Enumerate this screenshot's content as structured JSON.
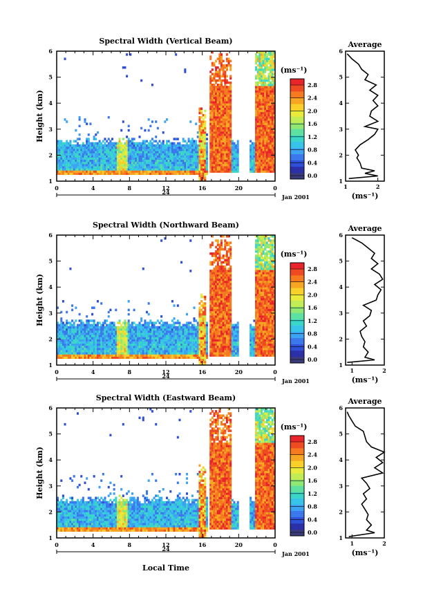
{
  "colorbar": {
    "unit_label": "(ms⁻¹)",
    "ticks": [
      "2.8",
      "2.4",
      "2.0",
      "1.6",
      "1.2",
      "0.8",
      "0.4",
      "0.0"
    ],
    "colors": [
      "#3b3b7a",
      "#2b2fa8",
      "#2f4fd6",
      "#3a78ec",
      "#3ea2f2",
      "#38c4e8",
      "#3ad6c8",
      "#5de0a0",
      "#8ee873",
      "#c2ec55",
      "#eaea3c",
      "#f9cf2a",
      "#f7a623",
      "#f57a20",
      "#ef4b22",
      "#e8252a"
    ]
  },
  "panels": [
    {
      "title": "Spectral Width (Vertical Beam)",
      "ylabel": "Height (km)",
      "yticks": [
        "1",
        "2",
        "3",
        "4",
        "5",
        "6"
      ],
      "xticks": [
        "0",
        "4",
        "8",
        "12",
        "16",
        "20",
        "0"
      ],
      "date_center": "24",
      "date_right": "Jan 2001",
      "avg_title": "Average",
      "avg_xticks": [
        "1",
        "2"
      ],
      "avg_xlabel": "(ms⁻¹)"
    },
    {
      "title": "Spectral Width (Northward Beam)",
      "ylabel": "Height (km)",
      "yticks": [
        "1",
        "2",
        "3",
        "4",
        "5",
        "6"
      ],
      "xticks": [
        "0",
        "4",
        "8",
        "12",
        "16",
        "20",
        "0"
      ],
      "date_center": "24",
      "date_right": "Jan 2001",
      "avg_title": "Average",
      "avg_xticks": [
        "1",
        "2"
      ],
      "avg_xlabel": "(ms⁻¹)"
    },
    {
      "title": "Spectral Width (Eastward Beam)",
      "ylabel": "Height (km)",
      "yticks": [
        "1",
        "2",
        "3",
        "4",
        "5",
        "6"
      ],
      "xticks": [
        "0",
        "4",
        "8",
        "12",
        "16",
        "20",
        "0"
      ],
      "date_center": "24",
      "date_right": "Jan 2001",
      "avg_title": "Average",
      "avg_xticks": [
        "1",
        "2"
      ],
      "avg_xlabel": "(ms⁻¹)"
    }
  ],
  "xlabel": "Local Time",
  "chart_data": [
    {
      "type": "heatmap",
      "title": "Spectral Width (Vertical Beam)",
      "ylabel": "Height (km)",
      "ylim": [
        1,
        6
      ],
      "xlim_hours": [
        0,
        24
      ],
      "colorbar_range": [
        0.0,
        2.8
      ],
      "profile": {
        "title": "Average",
        "xlabel": "(ms⁻¹)",
        "xlim": [
          1,
          2.2
        ],
        "height": [
          1.1,
          1.2,
          1.3,
          1.4,
          1.5,
          1.7,
          1.9,
          2.0,
          2.2,
          2.4,
          2.6,
          2.8,
          3.0,
          3.1,
          3.3,
          3.5,
          3.7,
          3.9,
          4.1,
          4.3,
          4.5,
          4.7,
          4.9,
          5.1,
          5.3,
          5.5,
          5.7,
          5.9
        ],
        "value": [
          1.1,
          2.0,
          1.6,
          1.9,
          1.5,
          1.45,
          1.35,
          1.4,
          1.3,
          1.45,
          1.7,
          1.9,
          2.0,
          1.6,
          2.0,
          1.75,
          1.8,
          2.0,
          1.85,
          2.0,
          1.75,
          1.95,
          1.6,
          1.7,
          1.5,
          1.4,
          1.2,
          1.05
        ]
      }
    },
    {
      "type": "heatmap",
      "title": "Spectral Width (Northward Beam)",
      "ylabel": "Height (km)",
      "ylim": [
        1,
        6
      ],
      "xlim_hours": [
        0,
        24
      ],
      "colorbar_range": [
        0.0,
        2.8
      ],
      "profile": {
        "title": "Average",
        "xlabel": "(ms⁻¹)",
        "xlim": [
          0.8,
          2.0
        ],
        "height": [
          1.1,
          1.2,
          1.3,
          1.5,
          1.7,
          1.9,
          2.1,
          2.3,
          2.5,
          2.7,
          2.9,
          3.1,
          3.3,
          3.5,
          3.7,
          3.9,
          4.1,
          4.3,
          4.5,
          4.7,
          4.9,
          5.1,
          5.3,
          5.5,
          5.7,
          5.9
        ],
        "value": [
          0.85,
          1.7,
          1.4,
          1.5,
          1.35,
          1.4,
          1.3,
          1.25,
          1.45,
          1.35,
          1.55,
          1.6,
          1.35,
          1.75,
          1.8,
          1.9,
          1.7,
          1.95,
          1.85,
          1.6,
          1.8,
          1.6,
          1.7,
          1.5,
          1.3,
          1.0
        ]
      }
    },
    {
      "type": "heatmap",
      "title": "Spectral Width (Eastward Beam)",
      "ylabel": "Height (km)",
      "ylim": [
        1,
        6
      ],
      "xlim_hours": [
        0,
        24
      ],
      "colorbar_range": [
        0.0,
        2.8
      ],
      "profile": {
        "title": "Average",
        "xlabel": "(ms⁻¹)",
        "xlim": [
          0.8,
          2.0
        ],
        "height": [
          1.05,
          1.2,
          1.3,
          1.5,
          1.7,
          1.9,
          2.1,
          2.3,
          2.5,
          2.7,
          2.9,
          3.1,
          3.3,
          3.5,
          3.7,
          3.9,
          4.1,
          4.3,
          4.5,
          4.7,
          4.9,
          5.1,
          5.3,
          5.5,
          5.7,
          5.85
        ],
        "value": [
          0.9,
          1.7,
          1.45,
          1.6,
          1.45,
          1.5,
          1.4,
          1.3,
          1.45,
          1.35,
          1.55,
          1.45,
          1.3,
          1.95,
          1.7,
          1.95,
          1.75,
          2.0,
          1.6,
          1.45,
          1.4,
          1.35,
          1.1,
          1.0,
          0.9,
          0.85
        ]
      }
    }
  ]
}
